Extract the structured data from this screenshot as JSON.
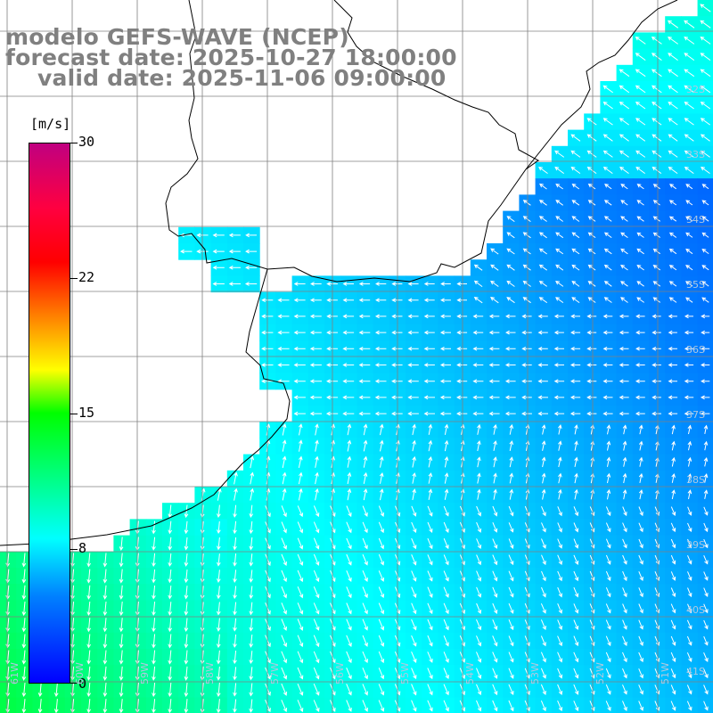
{
  "title": {
    "line1": "modelo GEFS-WAVE (NCEP)",
    "line2": "forecast date: 2025-10-27 18:00:00",
    "line3": "valid date: 2025-11-06 09:00:00"
  },
  "colorbar": {
    "unit": "[m/s]",
    "ticks": [
      "30",
      "22",
      "15",
      "8",
      "0"
    ],
    "min": 0,
    "max": 30,
    "colors": [
      "#0000ff",
      "#0080ff",
      "#00ffff",
      "#00ff00",
      "#ffff00",
      "#ff8000",
      "#ff0000",
      "#c00080"
    ]
  },
  "lat_labels": [
    "32S",
    "33S",
    "34S",
    "35S",
    "36S",
    "37S",
    "38S",
    "39S",
    "40S",
    "41S"
  ],
  "lon_labels": [
    "61W",
    "60W",
    "59W",
    "58W",
    "57W",
    "56W",
    "55W",
    "54W",
    "53W",
    "52W",
    "51W"
  ],
  "colors": {
    "land": "#ffffff",
    "grid": "#808080",
    "coast": "#000000",
    "arrow": "#ffffff"
  }
}
